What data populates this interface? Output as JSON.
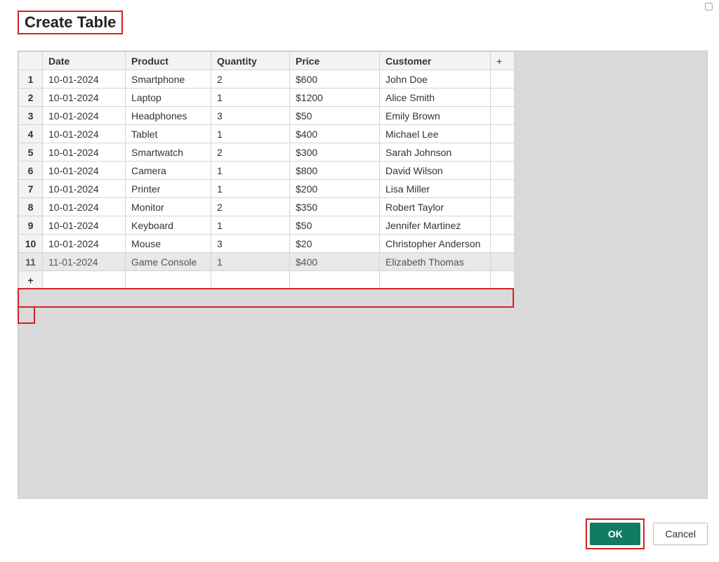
{
  "dialog": {
    "title": "Create Table"
  },
  "table": {
    "columns": [
      "Date",
      "Product",
      "Quantity",
      "Price",
      "Customer"
    ],
    "add_column_symbol": "+",
    "add_row_symbol": "+",
    "rows": [
      {
        "n": "1",
        "date": "10-01-2024",
        "product": "Smartphone",
        "quantity": "2",
        "price": "$600",
        "customer": "John Doe"
      },
      {
        "n": "2",
        "date": "10-01-2024",
        "product": "Laptop",
        "quantity": "1",
        "price": "$1200",
        "customer": "Alice Smith"
      },
      {
        "n": "3",
        "date": "10-01-2024",
        "product": "Headphones",
        "quantity": "3",
        "price": "$50",
        "customer": "Emily Brown"
      },
      {
        "n": "4",
        "date": "10-01-2024",
        "product": "Tablet",
        "quantity": "1",
        "price": "$400",
        "customer": "Michael Lee"
      },
      {
        "n": "5",
        "date": "10-01-2024",
        "product": "Smartwatch",
        "quantity": "2",
        "price": "$300",
        "customer": "Sarah Johnson"
      },
      {
        "n": "6",
        "date": "10-01-2024",
        "product": "Camera",
        "quantity": "1",
        "price": "$800",
        "customer": "David Wilson"
      },
      {
        "n": "7",
        "date": "10-01-2024",
        "product": "Printer",
        "quantity": "1",
        "price": "$200",
        "customer": "Lisa Miller"
      },
      {
        "n": "8",
        "date": "10-01-2024",
        "product": "Monitor",
        "quantity": "2",
        "price": "$350",
        "customer": "Robert Taylor"
      },
      {
        "n": "9",
        "date": "10-01-2024",
        "product": "Keyboard",
        "quantity": "1",
        "price": "$50",
        "customer": "Jennifer Martinez"
      },
      {
        "n": "10",
        "date": "10-01-2024",
        "product": "Mouse",
        "quantity": "3",
        "price": "$20",
        "customer": "Christopher Anderson"
      },
      {
        "n": "11",
        "date": "11-01-2024",
        "product": "Game Console",
        "quantity": "1",
        "price": "$400",
        "customer": "Elizabeth Thomas"
      }
    ]
  },
  "buttons": {
    "ok": "OK",
    "cancel": "Cancel"
  },
  "colors": {
    "highlight_border": "#d02323",
    "primary_button_bg": "#0f7b63",
    "primary_button_text": "#ffffff",
    "table_header_bg": "#f3f3f3",
    "table_border": "#d4d4d4",
    "panel_bg": "#d9d9d9",
    "selected_row_bg": "#e8e8e8"
  },
  "annotations": {
    "highlighted_row_index": 10,
    "highlight_add_row_button": true,
    "highlight_title": true,
    "highlight_ok_button": true
  }
}
